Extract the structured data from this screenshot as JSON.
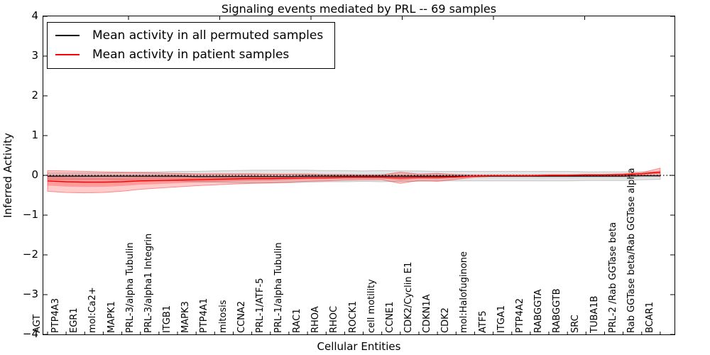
{
  "title": "Signaling events mediated by PRL -- 69 samples",
  "axes": {
    "xlabel": "Cellular Entities",
    "ylabel": "Inferred Activity",
    "ytick_labels": [
      "4",
      "3",
      "2",
      "1",
      "0",
      "−1",
      "−2",
      "−3",
      "−4"
    ]
  },
  "legend": {
    "items": [
      {
        "label": "Mean activity in all permuted samples",
        "color": "#000000"
      },
      {
        "label": "Mean activity in patient samples",
        "color": "#ff0000"
      }
    ]
  },
  "chart_data": {
    "type": "line",
    "title": "Signaling events mediated by PRL -- 69 samples",
    "xlabel": "Cellular Entities",
    "ylabel": "Inferred Activity",
    "ylim": [
      -4,
      4
    ],
    "yticks": [
      4,
      3,
      2,
      1,
      0,
      -1,
      -2,
      -3,
      -4
    ],
    "grid": false,
    "legend_position": "upper left",
    "zero_line_style": "dotted",
    "categories": [
      "AGT",
      "PTP4A3",
      "EGR1",
      "mol:Ca2+",
      "MAPK1",
      "PRL-3/alpha Tubulin",
      "PRL-3/alpha1 Integrin",
      "ITGB1",
      "MAPK3",
      "PTP4A1",
      "mitosis",
      "CCNA2",
      "PRL-1/ATF-5",
      "PRL-1/alpha Tubulin",
      "RAC1",
      "RHOA",
      "RHOC",
      "ROCK1",
      "cell motility",
      "CCNE1",
      "CDK2/Cyclin E1",
      "CDKN1A",
      "CDK2",
      "mol:Halofuginone",
      "ATF5",
      "ITGA1",
      "PTP4A2",
      "RABGGTA",
      "RABGGTB",
      "SRC",
      "TUBA1B",
      "PRL-2 /Rab GGTase beta",
      "Rab GGTase beta/Rab GGTase alpha",
      "BCAR1"
    ],
    "series": [
      {
        "name": "Mean activity in all permuted samples",
        "color": "#000000",
        "band_color": "#808080",
        "values": [
          -0.02,
          -0.02,
          -0.02,
          -0.02,
          -0.02,
          -0.02,
          -0.02,
          -0.02,
          -0.03,
          -0.03,
          -0.03,
          -0.03,
          -0.03,
          -0.03,
          -0.02,
          -0.02,
          -0.02,
          -0.02,
          -0.02,
          -0.02,
          -0.02,
          -0.02,
          -0.02,
          -0.02,
          -0.02,
          -0.02,
          -0.02,
          -0.02,
          -0.02,
          -0.02,
          -0.02,
          -0.02,
          -0.01,
          -0.01
        ],
        "std": [
          0.08,
          0.08,
          0.08,
          0.08,
          0.09,
          0.1,
          0.11,
          0.12,
          0.13,
          0.14,
          0.15,
          0.16,
          0.16,
          0.16,
          0.15,
          0.14,
          0.14,
          0.13,
          0.14,
          0.13,
          0.13,
          0.12,
          0.12,
          0.12,
          0.12,
          0.12,
          0.12,
          0.12,
          0.12,
          0.11,
          0.11,
          0.11,
          0.1,
          0.09
        ]
      },
      {
        "name": "Mean activity in patient samples",
        "color": "#ff0000",
        "band_color": "#ff0000",
        "values": [
          -0.14,
          -0.16,
          -0.17,
          -0.17,
          -0.16,
          -0.14,
          -0.13,
          -0.12,
          -0.11,
          -0.1,
          -0.09,
          -0.08,
          -0.08,
          -0.07,
          -0.06,
          -0.06,
          -0.05,
          -0.05,
          -0.05,
          -0.06,
          -0.05,
          -0.05,
          -0.04,
          -0.02,
          -0.01,
          -0.01,
          -0.01,
          0.0,
          0.0,
          0.01,
          0.01,
          0.02,
          0.04,
          0.08
        ],
        "std": [
          0.26,
          0.27,
          0.27,
          0.26,
          0.24,
          0.21,
          0.19,
          0.17,
          0.15,
          0.14,
          0.13,
          0.12,
          0.11,
          0.1,
          0.09,
          0.08,
          0.07,
          0.06,
          0.06,
          0.14,
          0.08,
          0.1,
          0.06,
          0.025,
          0.015,
          0.015,
          0.015,
          0.015,
          0.015,
          0.015,
          0.015,
          0.02,
          0.03,
          0.1
        ]
      }
    ]
  }
}
